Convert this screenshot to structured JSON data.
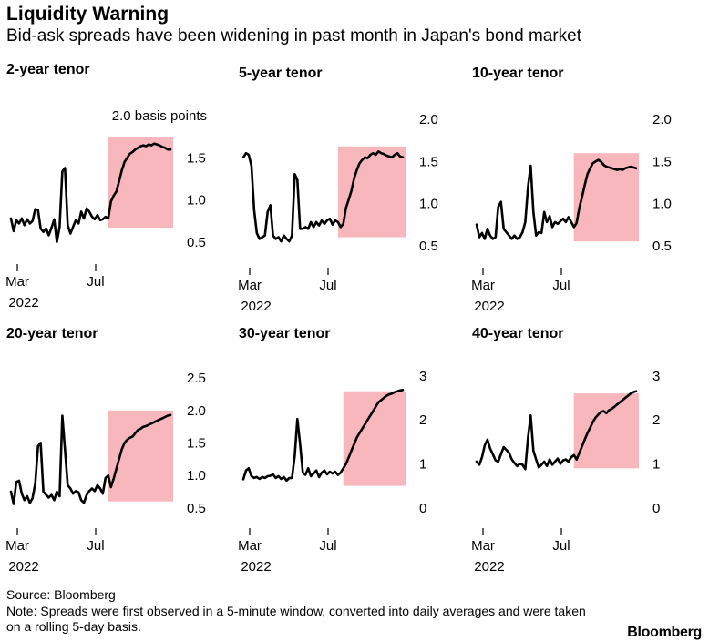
{
  "title": "Liquidity Warning",
  "subtitle": "Bid-ask spreads have been widening in past month in Japan's bond market",
  "source": "Source: Bloomberg",
  "note": "Note: Spreads were first observed in a 5-minute window, converted into daily averages and were taken on a rolling 5-day basis.",
  "logo": "Bloomberg",
  "colors": {
    "line": "#000000",
    "highlight": "#f7b7bd",
    "text": "#000000"
  },
  "chart_data": [
    {
      "type": "line",
      "title": "2-year tenor",
      "unit_label": "2.0 basis points",
      "x_ticks": [
        "Mar",
        "Jul"
      ],
      "x_year": "2022",
      "y_ticks": [
        0.5,
        1.0,
        1.5,
        2.0
      ],
      "y_tick_labels": [
        "0.5",
        "1.0",
        "1.5",
        ""
      ],
      "ylim": [
        0.4,
        2.1
      ],
      "x": [
        0,
        1,
        2,
        3,
        4,
        5,
        6,
        7,
        8,
        9,
        10,
        11,
        12,
        13,
        14,
        15,
        16,
        17,
        18,
        19,
        20,
        21,
        22,
        23,
        24,
        25,
        26,
        27,
        28,
        29,
        30,
        31,
        32,
        33,
        34,
        35,
        36,
        37,
        38,
        39,
        40,
        41,
        42,
        43,
        44,
        45,
        46,
        47,
        48,
        49,
        50,
        51,
        52,
        53,
        54,
        55,
        56,
        57,
        58,
        59
      ],
      "values": [
        0.78,
        0.63,
        0.76,
        0.72,
        0.78,
        0.7,
        0.77,
        0.72,
        0.75,
        0.89,
        0.88,
        0.66,
        0.62,
        0.66,
        0.58,
        0.67,
        0.77,
        0.5,
        0.68,
        1.34,
        1.38,
        0.7,
        0.6,
        0.68,
        0.76,
        0.72,
        0.86,
        0.78,
        0.9,
        0.86,
        0.8,
        0.77,
        0.82,
        0.76,
        0.77,
        0.8,
        0.78,
        0.98,
        1.05,
        1.1,
        1.22,
        1.35,
        1.45,
        1.5,
        1.55,
        1.57,
        1.6,
        1.62,
        1.64,
        1.65,
        1.64,
        1.66,
        1.65,
        1.67,
        1.66,
        1.65,
        1.63,
        1.62,
        1.6,
        1.6
      ],
      "highlight_range": [
        37,
        59
      ],
      "highlight_ylim": [
        0.67,
        1.75
      ]
    },
    {
      "type": "line",
      "title": "5-year tenor",
      "x_ticks": [
        "Mar",
        "Jul"
      ],
      "x_year": "2022",
      "y_ticks": [
        0.5,
        1.0,
        1.5,
        2.0
      ],
      "y_tick_labels": [
        "0.5",
        "1.0",
        "1.5",
        "2.0"
      ],
      "ylim": [
        0.4,
        2.1
      ],
      "x": [
        0,
        1,
        2,
        3,
        4,
        5,
        6,
        7,
        8,
        9,
        10,
        11,
        12,
        13,
        14,
        15,
        16,
        17,
        18,
        19,
        20,
        21,
        22,
        23,
        24,
        25,
        26,
        27,
        28,
        29,
        30,
        31,
        32,
        33,
        34,
        35,
        36,
        37,
        38,
        39,
        40,
        41,
        42,
        43,
        44,
        45,
        46,
        47,
        48,
        49,
        50,
        51,
        52,
        53,
        54,
        55,
        56,
        57,
        58,
        59
      ],
      "values": [
        1.55,
        1.6,
        1.58,
        1.45,
        0.92,
        0.65,
        0.58,
        0.6,
        0.62,
        0.9,
        0.98,
        0.62,
        0.58,
        0.6,
        0.55,
        0.62,
        0.58,
        0.55,
        0.62,
        1.35,
        1.28,
        0.7,
        0.7,
        0.72,
        0.7,
        0.78,
        0.72,
        0.78,
        0.74,
        0.8,
        0.76,
        0.8,
        0.82,
        0.75,
        0.8,
        0.78,
        0.72,
        0.76,
        0.95,
        1.05,
        1.15,
        1.3,
        1.4,
        1.48,
        1.52,
        1.55,
        1.54,
        1.58,
        1.6,
        1.58,
        1.62,
        1.6,
        1.59,
        1.57,
        1.56,
        1.55,
        1.58,
        1.6,
        1.56,
        1.55
      ],
      "highlight_range": [
        36,
        59
      ],
      "highlight_ylim": [
        0.6,
        1.68
      ]
    },
    {
      "type": "line",
      "title": "10-year tenor",
      "x_ticks": [
        "Mar",
        "Jul"
      ],
      "x_year": "2022",
      "y_ticks": [
        0.5,
        1.0,
        1.5,
        2.0
      ],
      "y_tick_labels": [
        "0.5",
        "1.0",
        "1.5",
        "2.0"
      ],
      "ylim": [
        0.4,
        2.1
      ],
      "x": [
        0,
        1,
        2,
        3,
        4,
        5,
        6,
        7,
        8,
        9,
        10,
        11,
        12,
        13,
        14,
        15,
        16,
        17,
        18,
        19,
        20,
        21,
        22,
        23,
        24,
        25,
        26,
        27,
        28,
        29,
        30,
        31,
        32,
        33,
        34,
        35,
        36,
        37,
        38,
        39,
        40,
        41,
        42,
        43,
        44,
        45,
        46,
        47,
        48,
        49,
        50,
        51,
        52,
        53,
        54,
        55,
        56,
        57,
        58,
        59
      ],
      "values": [
        0.75,
        0.6,
        0.65,
        0.58,
        0.7,
        0.62,
        0.58,
        0.6,
        0.96,
        1.02,
        0.7,
        0.66,
        0.62,
        0.58,
        0.62,
        0.58,
        0.6,
        0.66,
        0.78,
        1.2,
        1.45,
        0.9,
        0.62,
        0.66,
        0.65,
        0.9,
        0.78,
        0.85,
        0.72,
        0.78,
        0.76,
        0.79,
        0.82,
        0.78,
        0.84,
        0.78,
        0.72,
        0.77,
        0.95,
        1.08,
        1.22,
        1.35,
        1.42,
        1.48,
        1.5,
        1.52,
        1.5,
        1.46,
        1.44,
        1.43,
        1.42,
        1.41,
        1.4,
        1.41,
        1.4,
        1.42,
        1.43,
        1.44,
        1.43,
        1.42
      ],
      "highlight_range": [
        37,
        59
      ],
      "highlight_ylim": [
        0.55,
        1.6
      ]
    },
    {
      "type": "line",
      "title": "20-year tenor",
      "x_ticks": [
        "Mar",
        "Jul"
      ],
      "x_year": "2022",
      "y_ticks": [
        0.5,
        1.0,
        1.5,
        2.0,
        2.5
      ],
      "y_tick_labels": [
        "0.5",
        "1.0",
        "1.5",
        "2.0",
        "2.5"
      ],
      "ylim": [
        0.4,
        2.6
      ],
      "x": [
        0,
        1,
        2,
        3,
        4,
        5,
        6,
        7,
        8,
        9,
        10,
        11,
        12,
        13,
        14,
        15,
        16,
        17,
        18,
        19,
        20,
        21,
        22,
        23,
        24,
        25,
        26,
        27,
        28,
        29,
        30,
        31,
        32,
        33,
        34,
        35,
        36,
        37,
        38,
        39,
        40,
        41,
        42,
        43,
        44,
        45,
        46,
        47,
        48,
        49,
        50,
        51,
        52,
        53,
        54,
        55,
        56,
        57,
        58,
        59
      ],
      "values": [
        0.75,
        0.56,
        0.9,
        0.92,
        0.72,
        0.62,
        0.68,
        0.58,
        0.65,
        0.88,
        1.45,
        1.5,
        0.75,
        0.7,
        0.66,
        0.7,
        0.62,
        0.75,
        0.68,
        1.92,
        1.4,
        0.85,
        0.8,
        0.72,
        0.76,
        0.74,
        0.62,
        0.58,
        0.7,
        0.76,
        0.8,
        0.76,
        0.85,
        0.8,
        0.72,
        0.96,
        1.0,
        0.82,
        0.95,
        1.1,
        1.25,
        1.4,
        1.5,
        1.55,
        1.58,
        1.6,
        1.65,
        1.7,
        1.72,
        1.75,
        1.76,
        1.78,
        1.8,
        1.82,
        1.84,
        1.86,
        1.88,
        1.9,
        1.92,
        1.93
      ],
      "highlight_range": [
        37,
        59
      ],
      "highlight_ylim": [
        0.6,
        2.0
      ]
    },
    {
      "type": "line",
      "title": "30-year tenor",
      "x_ticks": [
        "Mar",
        "Jul"
      ],
      "x_year": "2022",
      "y_ticks": [
        0,
        1,
        2,
        3
      ],
      "y_tick_labels": [
        "0",
        "1",
        "2",
        "3"
      ],
      "ylim": [
        -0.15,
        3.1
      ],
      "x": [
        0,
        1,
        2,
        3,
        4,
        5,
        6,
        7,
        8,
        9,
        10,
        11,
        12,
        13,
        14,
        15,
        16,
        17,
        18,
        19,
        20,
        21,
        22,
        23,
        24,
        25,
        26,
        27,
        28,
        29,
        30,
        31,
        32,
        33,
        34,
        35,
        36,
        37,
        38,
        39,
        40,
        41,
        42,
        43,
        44,
        45,
        46,
        47,
        48,
        49,
        50,
        51,
        52,
        53,
        54,
        55,
        56,
        57,
        58,
        59
      ],
      "values": [
        0.65,
        0.85,
        0.9,
        0.72,
        0.68,
        0.7,
        0.66,
        0.7,
        0.68,
        0.72,
        0.73,
        0.76,
        0.68,
        0.72,
        0.66,
        0.7,
        0.62,
        0.68,
        0.68,
        1.18,
        2.02,
        1.45,
        0.8,
        0.75,
        0.9,
        0.72,
        0.78,
        0.85,
        0.7,
        0.8,
        0.85,
        0.76,
        0.82,
        0.78,
        0.82,
        0.75,
        0.8,
        0.9,
        1.0,
        1.15,
        1.3,
        1.45,
        1.6,
        1.7,
        1.8,
        1.9,
        2.0,
        2.1,
        2.2,
        2.3,
        2.4,
        2.45,
        2.5,
        2.55,
        2.58,
        2.6,
        2.63,
        2.65,
        2.67,
        2.68
      ],
      "highlight_range": [
        38,
        59
      ],
      "highlight_ylim": [
        0.5,
        2.65
      ]
    },
    {
      "type": "line",
      "title": "40-year tenor",
      "x_ticks": [
        "Mar",
        "Jul"
      ],
      "x_year": "2022",
      "y_ticks": [
        0,
        1,
        2,
        3
      ],
      "y_tick_labels": [
        "0",
        "1",
        "2",
        "3"
      ],
      "ylim": [
        -0.15,
        3.1
      ],
      "x": [
        0,
        1,
        2,
        3,
        4,
        5,
        6,
        7,
        8,
        9,
        10,
        11,
        12,
        13,
        14,
        15,
        16,
        17,
        18,
        19,
        20,
        21,
        22,
        23,
        24,
        25,
        26,
        27,
        28,
        29,
        30,
        31,
        32,
        33,
        34,
        35,
        36,
        37,
        38,
        39,
        40,
        41,
        42,
        43,
        44,
        45,
        46,
        47,
        48,
        49,
        50,
        51,
        52,
        53,
        54,
        55,
        56,
        57,
        58,
        59
      ],
      "values": [
        1.05,
        0.98,
        1.15,
        1.42,
        1.55,
        1.35,
        1.22,
        1.08,
        1.05,
        1.22,
        1.38,
        1.32,
        1.25,
        1.1,
        1.02,
        0.95,
        1.0,
        0.98,
        0.88,
        1.6,
        2.1,
        1.3,
        1.1,
        0.92,
        0.98,
        1.05,
        0.95,
        1.1,
        0.98,
        1.05,
        1.12,
        1.0,
        1.08,
        1.1,
        1.05,
        1.15,
        1.2,
        1.1,
        1.25,
        1.4,
        1.55,
        1.7,
        1.82,
        1.95,
        2.05,
        2.12,
        2.18,
        2.2,
        2.15,
        2.22,
        2.25,
        2.3,
        2.35,
        2.4,
        2.45,
        2.5,
        2.55,
        2.6,
        2.63,
        2.65
      ],
      "highlight_range": [
        37,
        59
      ],
      "highlight_ylim": [
        0.9,
        2.6
      ]
    }
  ]
}
